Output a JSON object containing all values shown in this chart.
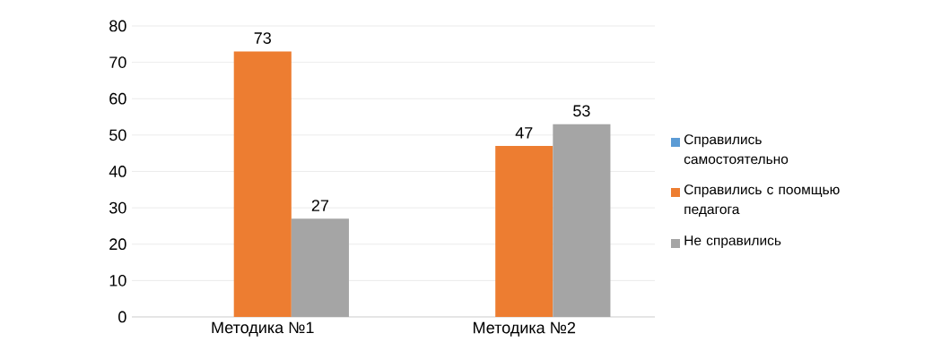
{
  "chart_data": {
    "type": "bar",
    "categories": [
      "Методика №1",
      "Методика №2"
    ],
    "series": [
      {
        "name": "Справились самостоятельно",
        "color": "#5b9bd5",
        "values": [
          null,
          null
        ]
      },
      {
        "name": "Справились с поомщью педагога",
        "color": "#ed7d31",
        "values": [
          73,
          47
        ]
      },
      {
        "name": "Не справились",
        "color": "#a5a5a5",
        "values": [
          27,
          53
        ]
      }
    ],
    "ylim": [
      0,
      80
    ],
    "yticks": [
      0,
      10,
      20,
      30,
      40,
      50,
      60,
      70,
      80
    ],
    "grid": "y",
    "legend": "right",
    "data_labels": true
  }
}
